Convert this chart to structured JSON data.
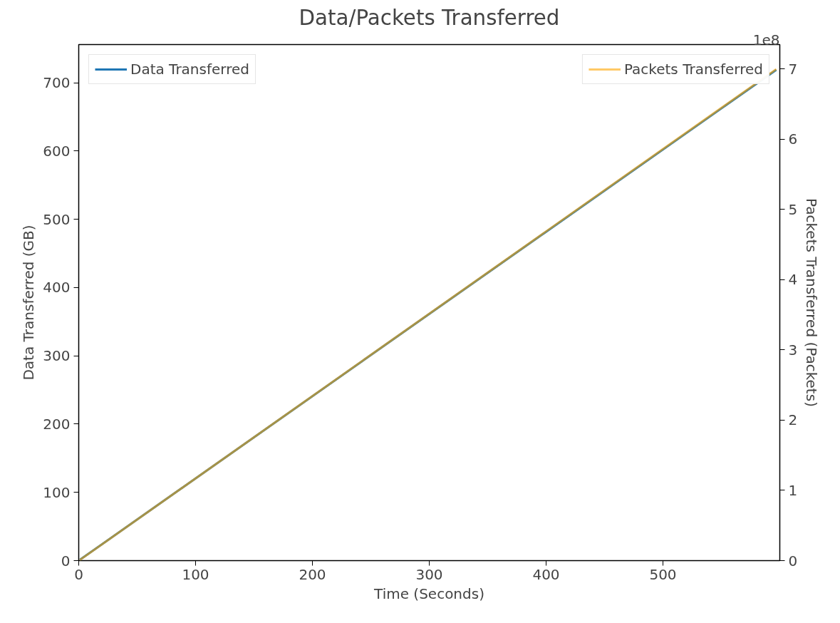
{
  "chart_data": {
    "type": "line",
    "title": "Data/Packets Transferred",
    "xlabel": "Time (Seconds)",
    "ylabel": "Data Transferred (GB)",
    "y2label": "Packets Transferred (Packets)",
    "x": [
      1,
      597
    ],
    "series": [
      {
        "name": "Data Transferred",
        "color": "#1f77b4",
        "values": [
          1.2,
          719
        ]
      },
      {
        "name": "Packets Transferred",
        "color": "#ffa500",
        "values": [
          0.01,
          7.0
        ],
        "axis": "y2"
      }
    ],
    "xlim": [
      0,
      600
    ],
    "xticks": [
      0,
      100,
      200,
      300,
      400,
      500
    ],
    "ylim": [
      0,
      756
    ],
    "yticks": [
      0,
      100,
      200,
      300,
      400,
      500,
      600,
      700
    ],
    "y2lim": [
      0,
      7.35
    ],
    "y2ticks": [
      0,
      1,
      2,
      3,
      4,
      5,
      6,
      7
    ],
    "annotations": [
      "1e8"
    ],
    "legend": "top",
    "grid": false,
    "marker": "none",
    "line_style": "solid"
  }
}
